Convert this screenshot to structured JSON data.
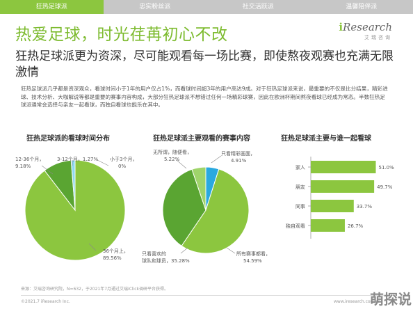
{
  "tabs": [
    {
      "label": "狂热足球派",
      "active": true
    },
    {
      "label": "忠实粉丝派",
      "active": false
    },
    {
      "label": "社交活跃派",
      "active": false
    },
    {
      "label": "温馨陪伴派",
      "active": false
    }
  ],
  "logo": {
    "mark": "i",
    "text": "Research",
    "sub": "艾瑞咨询"
  },
  "title": "热爱足球，时光荏苒初心不改",
  "subtitle": "狂热足球派更为资深，尽可能观看每一场比赛，即使熬夜观赛也充满无限激情",
  "body": "狂热足球派几乎都是资深观众，看球时间小于1年的用户仅占1%，而看球时间超3年的用户高达9成。对于狂热足球派来说，最重要的不仅是比分结果，精彩进球、技术分析、大咖解说等都是重要的赛事内容构成，大部分狂热足球派不想错过任何一场精彩球赛，因此在欧洲杯期间熬夜看球已经成为常态。半数狂热足球派通常会选择与亲友一起看球，而独自看球也能乐在其中。",
  "charts": {
    "c1_title": "狂热足球派的看球时间分布",
    "c2_title": "狂热足球派主要观看的赛事内容",
    "c3_title": "狂热足球派主要与谁一起看球"
  },
  "chart_data": [
    {
      "type": "pie",
      "title": "狂热足球派的看球时间分布",
      "labels": [
        "36个月上",
        "12-36个月",
        "3-12个月",
        "小于3个月"
      ],
      "values": [
        89.56,
        9.18,
        1.27,
        0
      ],
      "value_labels": [
        "89.56%",
        "9.18%",
        "1.27%",
        "0%"
      ],
      "colors": [
        "#8cc63f",
        "#5aa532",
        "#8ed8f0",
        "#2aa9df"
      ]
    },
    {
      "type": "pie",
      "title": "狂热足球派主要观看的赛事内容",
      "labels": [
        "所有赛事都看",
        "只看喜欢的球队和球员",
        "无所谓，随便看",
        "只看精彩画面"
      ],
      "values": [
        54.59,
        35.28,
        5.22,
        4.91
      ],
      "value_labels": [
        "54.59%",
        "35.28%",
        "5.22%",
        "4.91%"
      ],
      "colors": [
        "#8cc63f",
        "#5aa532",
        "#9fd46a",
        "#2aa9df"
      ]
    },
    {
      "type": "bar",
      "title": "狂热足球派主要与谁一起看球",
      "categories": [
        "家人",
        "朋友",
        "同事",
        "独自观看"
      ],
      "values": [
        51.0,
        49.7,
        33.7,
        26.7
      ],
      "value_labels": [
        "51.0%",
        "49.7%",
        "33.7%",
        "26.7%"
      ],
      "color": "#8cc63f"
    }
  ],
  "footer": {
    "source": "来源：艾瑞咨询研究院，N=632，于2021年7月通过艾瑞iClick调研平台获得。",
    "left": "©2021.7 iResearch Inc.",
    "right": "www.iresearch.com.cn",
    "watermark": "萌探说"
  }
}
